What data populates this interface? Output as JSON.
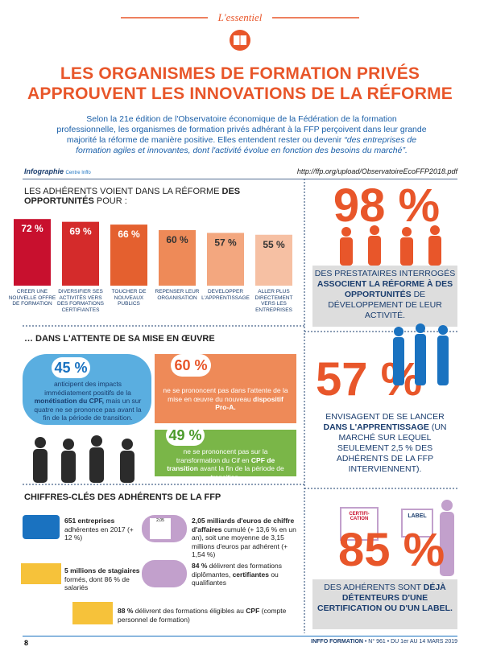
{
  "header": {
    "label": "L'essentiel"
  },
  "title": {
    "line1": "LES ORGANISMES DE FORMATION PRIVÉS",
    "line2": "APPROUVENT LES INNOVATIONS DE LA RÉFORME"
  },
  "intro": {
    "text": "Selon la 21e édition de l'Observatoire économique de la Fédération de la formation professionnelle, les organismes de formation privés adhérant à la FFP perçoivent dans leur grande majorité la réforme de manière positive. Elles entendent rester ou devenir",
    "quote": "“des entreprises de formation agiles et innovantes, dont l'activité évolue en fonction des besoins du marché”."
  },
  "credit": {
    "label": "Infographie",
    "source": "Centre Inffo",
    "url": "http://ffp.org/upload/ObservatoireEcoFFP2018.pdf"
  },
  "section1": {
    "text": "LES ADHÉRENTS VOIENT DANS LA RÉFORME",
    "bold": "DES OPPORTUNITÉS",
    "end": "POUR :"
  },
  "chart_data": {
    "type": "bar",
    "categories": [
      "CRÉER UNE NOUVELLE OFFRE DE FORMATION",
      "DIVERSIFIER SES ACTIVITÉS VERS DES FORMATIONS CERTIFIANTES",
      "TOUCHER DE NOUVEAUX PUBLICS",
      "REPENSER LEUR ORGANISATION",
      "DÉVELOPPER L'APPRENTISSAGE",
      "ALLER PLUS DIRECTEMENT VERS LES ENTREPRISES"
    ],
    "values": [
      72,
      69,
      66,
      60,
      57,
      55
    ],
    "value_labels": [
      "72 %",
      "69 %",
      "66 %",
      "60 %",
      "57 %",
      "55 %"
    ],
    "colors": [
      "#c8102e",
      "#d42b2b",
      "#e4602f",
      "#ee8a58",
      "#f3a77f",
      "#f6c0a3"
    ]
  },
  "section2": {
    "title": "… DANS L'ATTENTE DE SA MISE EN ŒUVRE"
  },
  "waiting": [
    {
      "value": "45 %",
      "text": [
        "anticipent des impacts immédiatement positifs de la",
        "monétisation du CPF,",
        "mais un sur quatre ne se prononce pas avant la fin de la période de transition."
      ]
    },
    {
      "value": "60 %",
      "text": [
        "ne se prononcent pas dans l'attente de la mise en œuvre du nouveau",
        "dispositif Pro-A."
      ]
    },
    {
      "value": "49 %",
      "text": [
        "ne se prononcent pas sur la transformation du Cif en",
        "CPF de transition",
        "avant la fin de la période de transition."
      ]
    }
  ],
  "section3": {
    "title": "CHIFFRES-CLÉS DES ADHÉRENTS DE LA FFP"
  },
  "key_figures": [
    [
      "651 entreprises",
      "adhérentes en 2017 (+ 12 %)"
    ],
    [
      "2,05 milliards d'euros de chiffre d'affaires",
      "cumulé (+ 13,6 % en un an), soit une moyenne de 3,15 millions d'euros par adhérent (+ 1,54 %)"
    ],
    [
      "5 millions de stagiaires",
      "formés, dont 86 % de salariés"
    ],
    [
      "84 %",
      "délivrent des formations diplômantes,",
      "certifiantes",
      "ou qualifiantes"
    ],
    [
      "88 %",
      "délivrent des formations éligibles au",
      "CPF",
      "(compte personnel de formation)"
    ]
  ],
  "calc_label": "2,05",
  "stats": [
    {
      "value": "98 %",
      "text": [
        "DES PRESTATAIRES INTERROGÉS",
        "ASSOCIENT LA RÉFORME À DES OPPORTUNITÉS",
        "DE DÉVELOPPEMENT DE LEUR ACTIVITÉ."
      ]
    },
    {
      "value": "57 %",
      "text": [
        "ENVISAGENT DE SE LANCER",
        "DANS L'APPRENTISSAGE",
        "(UN MARCHÉ SUR LEQUEL SEULEMENT 2,5 % DES ADHÉRENTS DE LA FFP INTERVIENNENT)."
      ]
    },
    {
      "value": "85 %",
      "text": [
        "DES ADHÉRENTS SONT",
        "DÉJÀ DÉTENTEURS D'UNE CERTIFICATION OU D'UN LABEL."
      ]
    }
  ],
  "cert_labels": [
    "CERTIFI-CATION",
    "LABEL"
  ],
  "footer": {
    "page": "8",
    "issue_bold": "INFFO FORMATION",
    "issue": "• N° 961 • DU 1er AU 14 MARS 2019"
  }
}
